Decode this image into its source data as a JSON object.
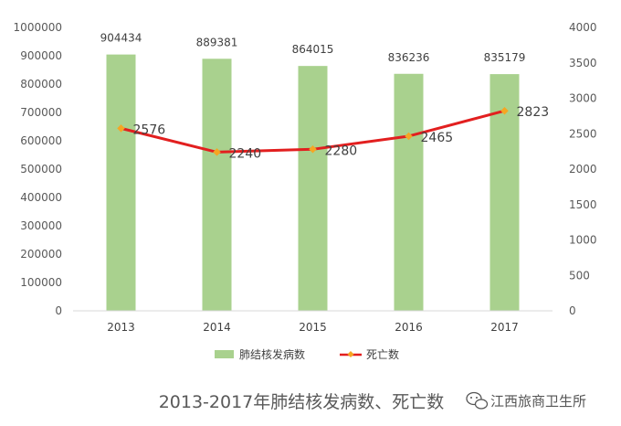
{
  "chart_data": {
    "type": "bar",
    "title": "2013-2017年肺结核发病数、死亡数",
    "categories": [
      "2013",
      "2014",
      "2015",
      "2016",
      "2017"
    ],
    "series": [
      {
        "name": "肺结核发病数",
        "kind": "bar",
        "axis": "left",
        "color": "#a9d18e",
        "values": [
          904434,
          889381,
          864015,
          836236,
          835179
        ]
      },
      {
        "name": "死亡数",
        "kind": "line",
        "axis": "right",
        "color": "#e21f1f",
        "marker_color": "#f5a623",
        "values": [
          2576,
          2240,
          2280,
          2465,
          2823
        ]
      }
    ],
    "y_left": {
      "min": 0,
      "max": 1000000,
      "ticks": [
        "0",
        "100000",
        "200000",
        "300000",
        "400000",
        "500000",
        "600000",
        "700000",
        "800000",
        "900000",
        "1000000"
      ]
    },
    "y_right": {
      "min": 0,
      "max": 4000,
      "ticks": [
        "0",
        "500",
        "1000",
        "1500",
        "2000",
        "2500",
        "3000",
        "3500",
        "4000"
      ]
    },
    "grid": false,
    "legend": "bottom"
  },
  "watermark": {
    "text": "江西旅商卫生所",
    "icon": "wechat-icon"
  }
}
